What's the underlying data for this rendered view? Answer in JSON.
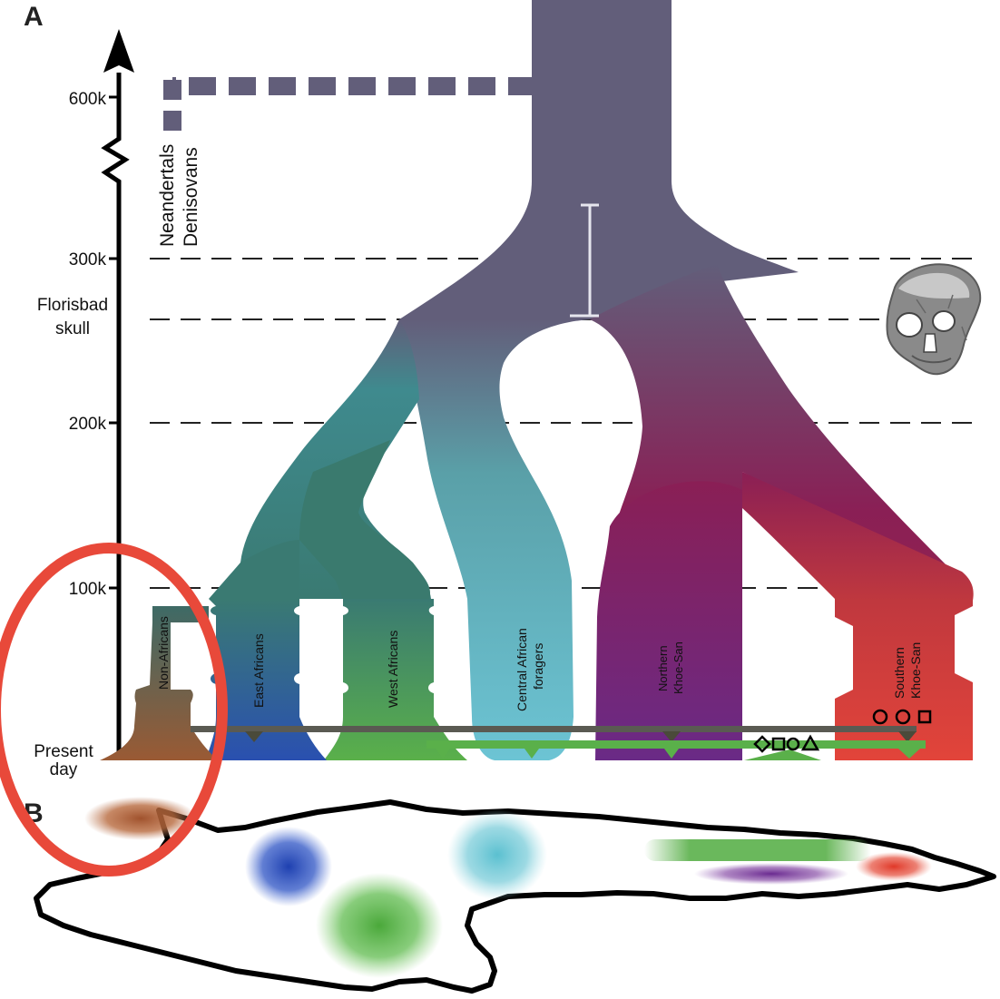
{
  "panels": {
    "a": "A",
    "b": "B"
  },
  "axis": {
    "ticks": [
      "600k",
      "300k",
      "200k",
      "100k"
    ],
    "florisbad_line1": "Florisbad",
    "florisbad_line2": "skull",
    "present_line1": "Present",
    "present_line2": "day"
  },
  "archaic": {
    "line1": "Neandertals",
    "line2": "Denisovans"
  },
  "populations": {
    "non_africans": "Non-Africans",
    "east_africans": "East Africans",
    "west_africans": "West Africans",
    "central_line1": "Central African",
    "central_line2": "foragers",
    "northern_line1": "Northern",
    "northern_line2": "Khoe-San",
    "southern_line1": "Southern",
    "southern_line2": "Khoe-San"
  },
  "colors": {
    "ancestral": "#625e7a",
    "non_africans": "#8a5a3a",
    "east_africans": "#2f55a8",
    "west_africans": "#5aa84a",
    "central_foragers": "#6cc0d0",
    "northern_khoe_san": "#6a2a80",
    "southern_khoe_san": "#e2443a",
    "highlight_ring": "#e8493a"
  },
  "icons": [
    "skull-image",
    "diamond-marker",
    "square-marker",
    "circle-marker",
    "triangle-marker"
  ]
}
